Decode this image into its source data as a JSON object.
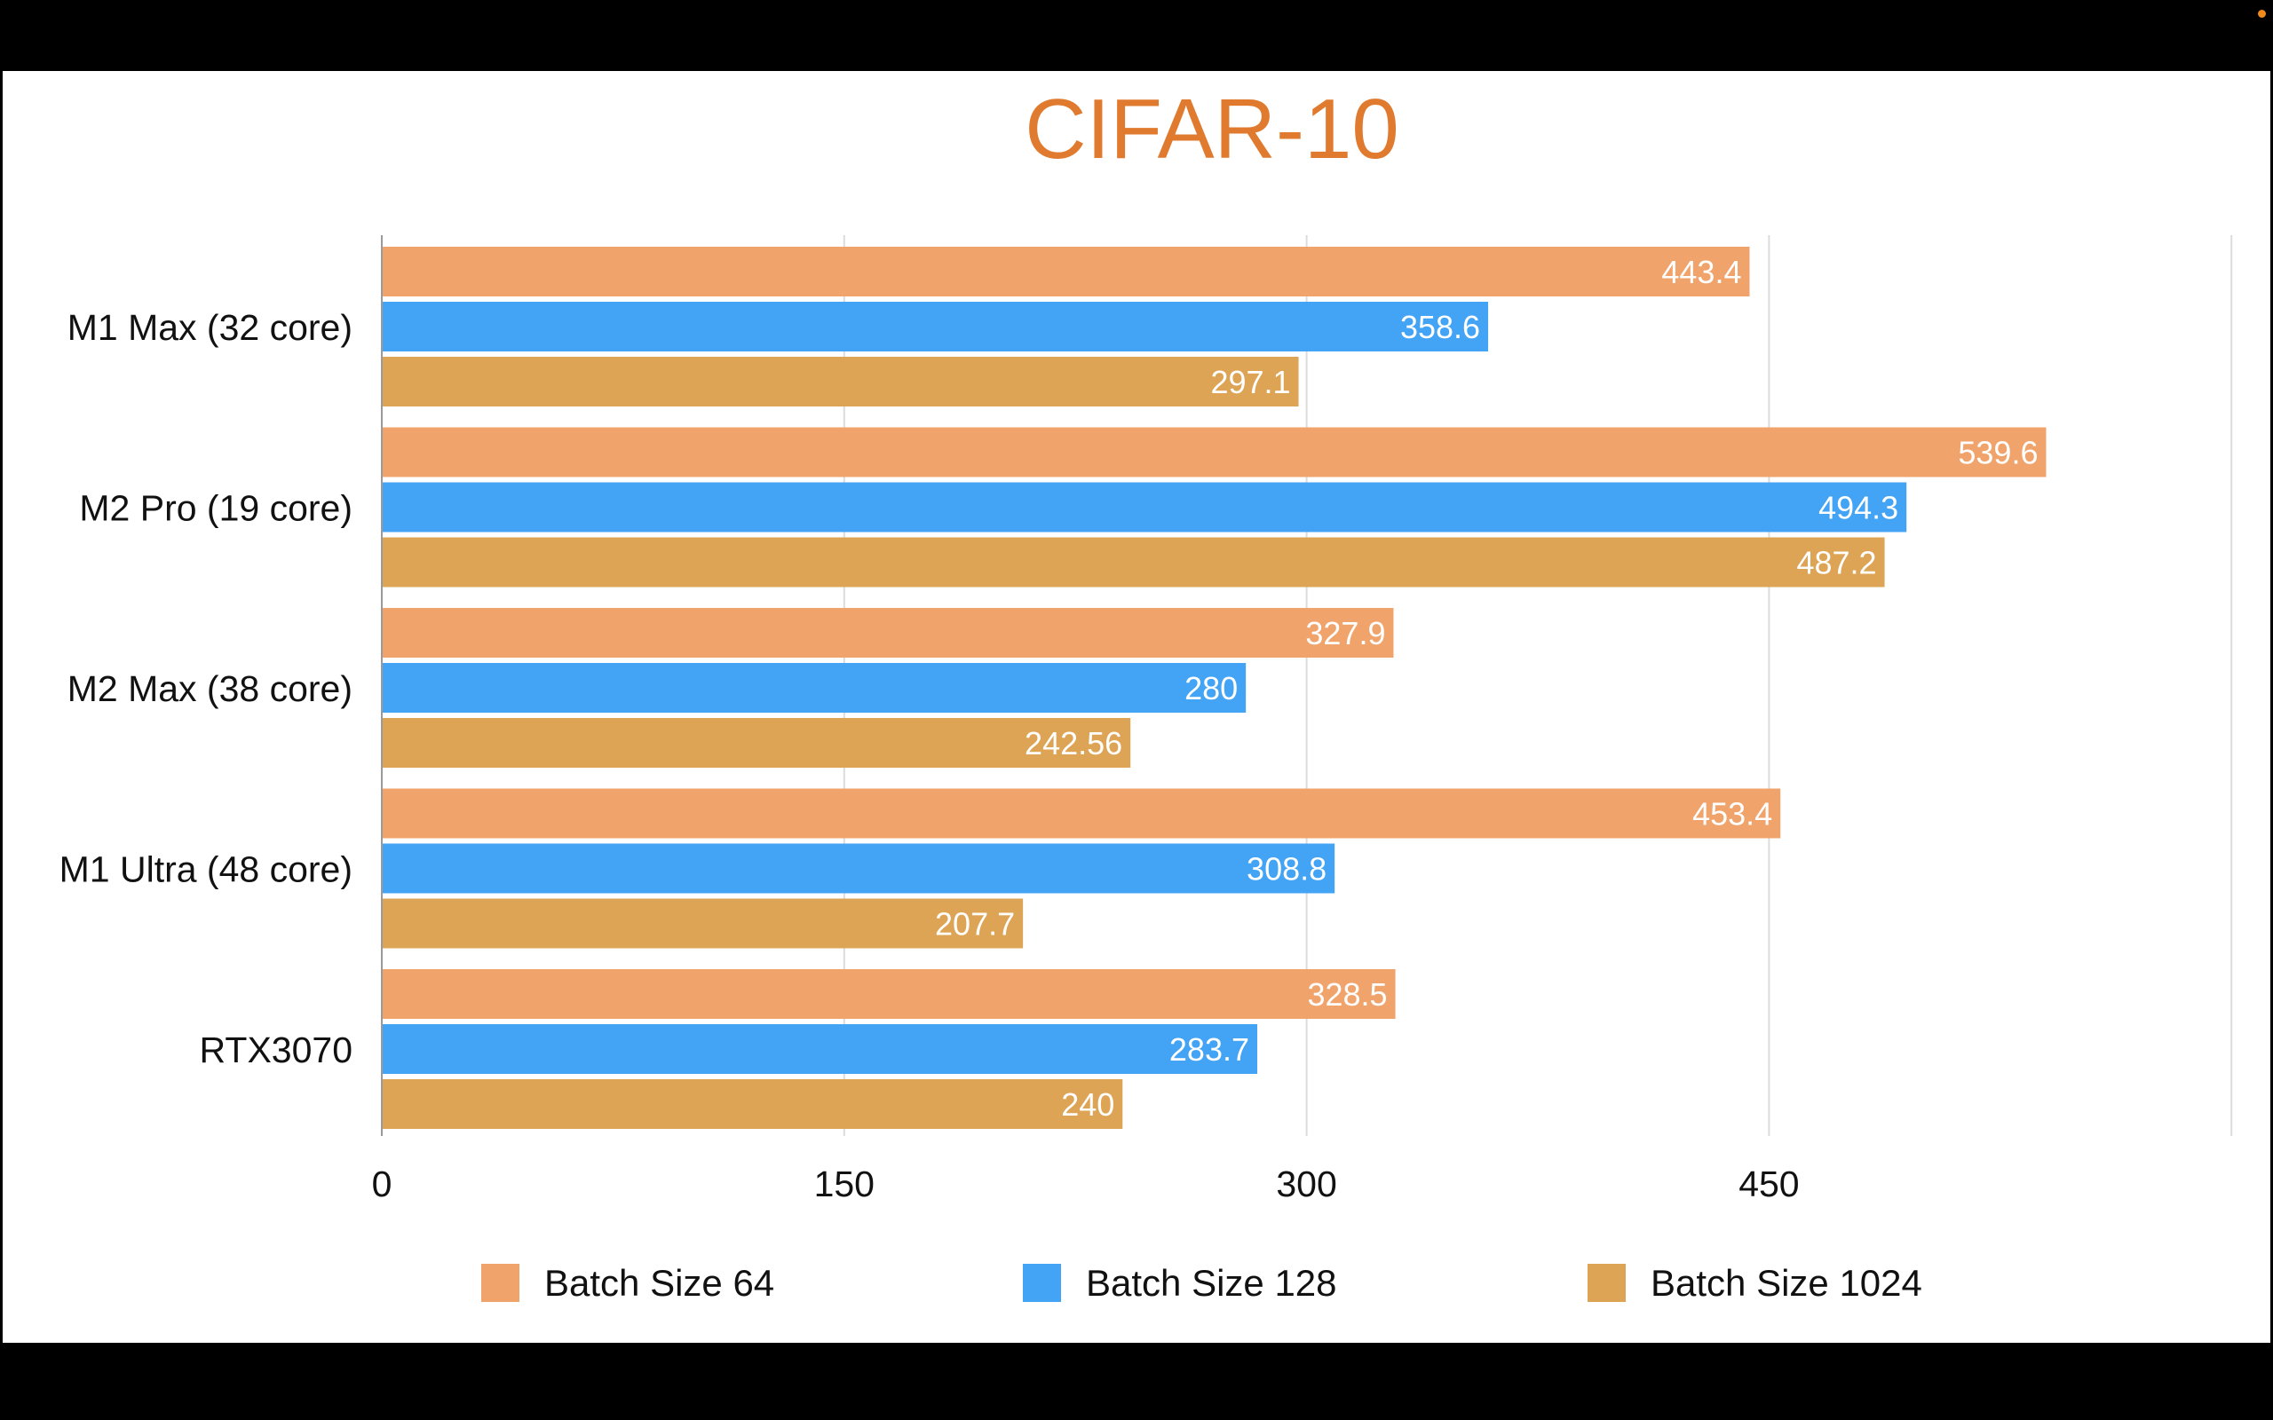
{
  "chart_data": {
    "type": "bar",
    "orientation": "horizontal",
    "title": "CIFAR-10",
    "categories": [
      "M1 Max (32 core)",
      "M2 Pro (19 core)",
      "M2 Max (38 core)",
      "M1 Ultra (48 core)",
      "RTX3070"
    ],
    "series": [
      {
        "name": "Batch Size 64",
        "color": "#F0A46C",
        "values": [
          443.4,
          539.6,
          327.9,
          453.4,
          328.5
        ],
        "labels": [
          "443.4",
          "539.6",
          "327.9",
          "453.4",
          "328.5"
        ]
      },
      {
        "name": "Batch Size 128",
        "color": "#43A3F5",
        "values": [
          358.6,
          494.3,
          280,
          308.8,
          283.7
        ],
        "labels": [
          "358.6",
          "494.3",
          "280",
          "308.8",
          "283.7"
        ]
      },
      {
        "name": "Batch Size 1024",
        "color": "#DEA455",
        "values": [
          297.1,
          487.2,
          242.56,
          207.7,
          240
        ],
        "labels": [
          "297.1",
          "487.2",
          "242.56",
          "207.7",
          "240"
        ]
      }
    ],
    "xticks": [
      "0",
      "150",
      "300",
      "450"
    ],
    "xlim": [
      0,
      600
    ],
    "grid": true,
    "legend_position": "bottom",
    "title_color": "#E07A2E"
  }
}
